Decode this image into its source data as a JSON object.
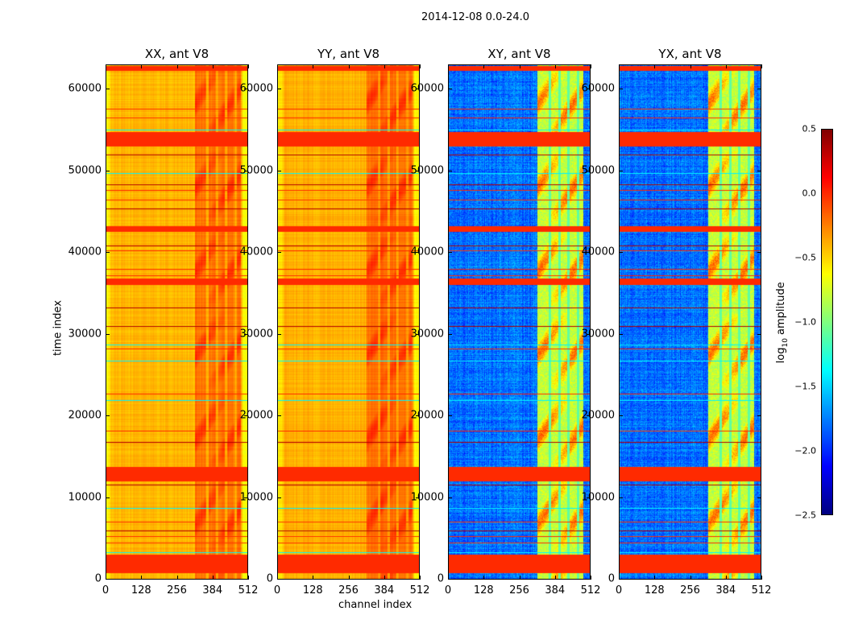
{
  "chart_data": {
    "type": "heatmap",
    "title": "2014-12-08 0.0-24.0",
    "xlabel": "channel index",
    "ylabel": "time index",
    "xlim": [
      0,
      512
    ],
    "ylim": [
      0,
      63000
    ],
    "xticks": [
      "0",
      "128",
      "256",
      "384",
      "512"
    ],
    "xtick_values": [
      0,
      128,
      256,
      384,
      512
    ],
    "yticks": [
      "0",
      "10000",
      "20000",
      "30000",
      "40000",
      "50000",
      "60000"
    ],
    "ytick_values": [
      0,
      10000,
      20000,
      30000,
      40000,
      50000,
      60000
    ],
    "panels": [
      {
        "title": "XX, ant V8",
        "kind": "auto",
        "base": -0.42
      },
      {
        "title": "YY, ant V8",
        "kind": "auto",
        "base": -0.4
      },
      {
        "title": "XY, ant V8",
        "kind": "cross",
        "base": -1.8
      },
      {
        "title": "YX, ant V8",
        "kind": "cross",
        "base": -1.8
      }
    ],
    "colorbar": {
      "label": "log10 amplitude",
      "label_main": "log",
      "label_sub": "10",
      "label_rest": " amplitude",
      "cmap": "jet",
      "range": [
        -2.5,
        0.5
      ],
      "ticks": [
        "0.5",
        "0.0",
        "−0.5",
        "−1.0",
        "−1.5",
        "−2.0",
        "−2.5"
      ],
      "tick_values": [
        0.5,
        0.0,
        -0.5,
        -1.0,
        -1.5,
        -2.0,
        -2.5
      ]
    },
    "flagged_time_ranges": [
      [
        53000,
        54800
      ],
      [
        62300,
        62800
      ],
      [
        12000,
        13700
      ],
      [
        36000,
        36800
      ],
      [
        42500,
        43200
      ],
      [
        700,
        3000
      ]
    ]
  }
}
